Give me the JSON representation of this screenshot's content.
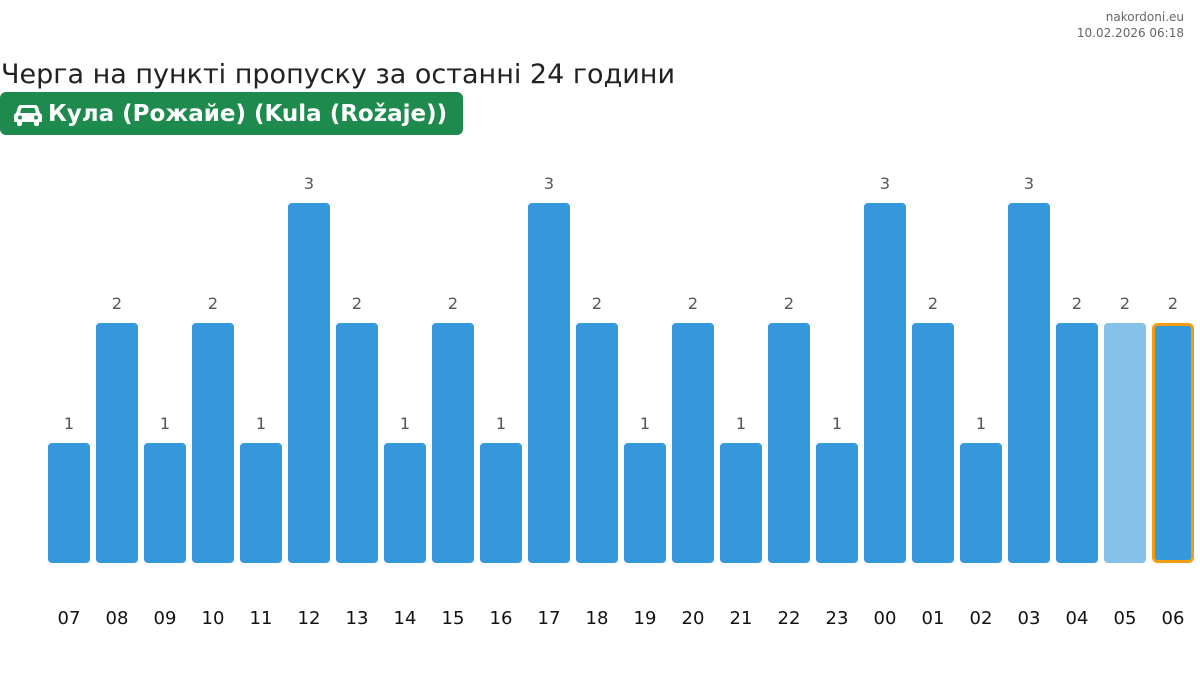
{
  "source": {
    "site": "nakordoni.eu",
    "timestamp": "10.02.2026 06:18"
  },
  "title": "Черга на пункті пропуску за останні 24 години",
  "checkpoint": {
    "icon": "car-icon",
    "name": "Кула (Рожайе) (Kula (Rožaje))",
    "color": "#1e8a4e"
  },
  "chart_data": {
    "type": "bar",
    "title": "Черга на пункті пропуску за останні 24 години",
    "xlabel": "",
    "ylabel": "",
    "categories": [
      "07",
      "08",
      "09",
      "10",
      "11",
      "12",
      "13",
      "14",
      "15",
      "16",
      "17",
      "18",
      "19",
      "20",
      "21",
      "22",
      "23",
      "00",
      "01",
      "02",
      "03",
      "04",
      "05",
      "06"
    ],
    "values": [
      1,
      2,
      1,
      2,
      1,
      3,
      2,
      1,
      2,
      1,
      3,
      2,
      1,
      2,
      1,
      2,
      1,
      3,
      2,
      1,
      3,
      2,
      2,
      2
    ],
    "ylim": [
      0,
      3
    ],
    "grid": false,
    "legend": "none",
    "data_labels": true,
    "colors": {
      "bar": "#3498db",
      "previous": "#85c1e9",
      "current": "#3498db",
      "current_outline": "#f39c12",
      "label": "#555555",
      "tick": "#111111"
    },
    "previous_index": 22,
    "current_index": 23
  }
}
